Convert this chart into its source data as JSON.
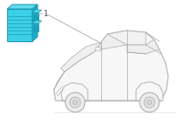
{
  "bg_color": "#ffffff",
  "car_outline_color": "#aaaaaa",
  "unit_fill_color": "#3ccfe8",
  "unit_top_color": "#60dcf0",
  "unit_right_color": "#1aaecc",
  "unit_outline_color": "#1a9ab0",
  "unit_dark_color": "#1898b0",
  "line_color": "#999999",
  "label_color": "#444444",
  "label_text": "1",
  "label_fontsize": 5.5,
  "fig_width": 2.0,
  "fig_height": 1.47,
  "dpi": 100
}
